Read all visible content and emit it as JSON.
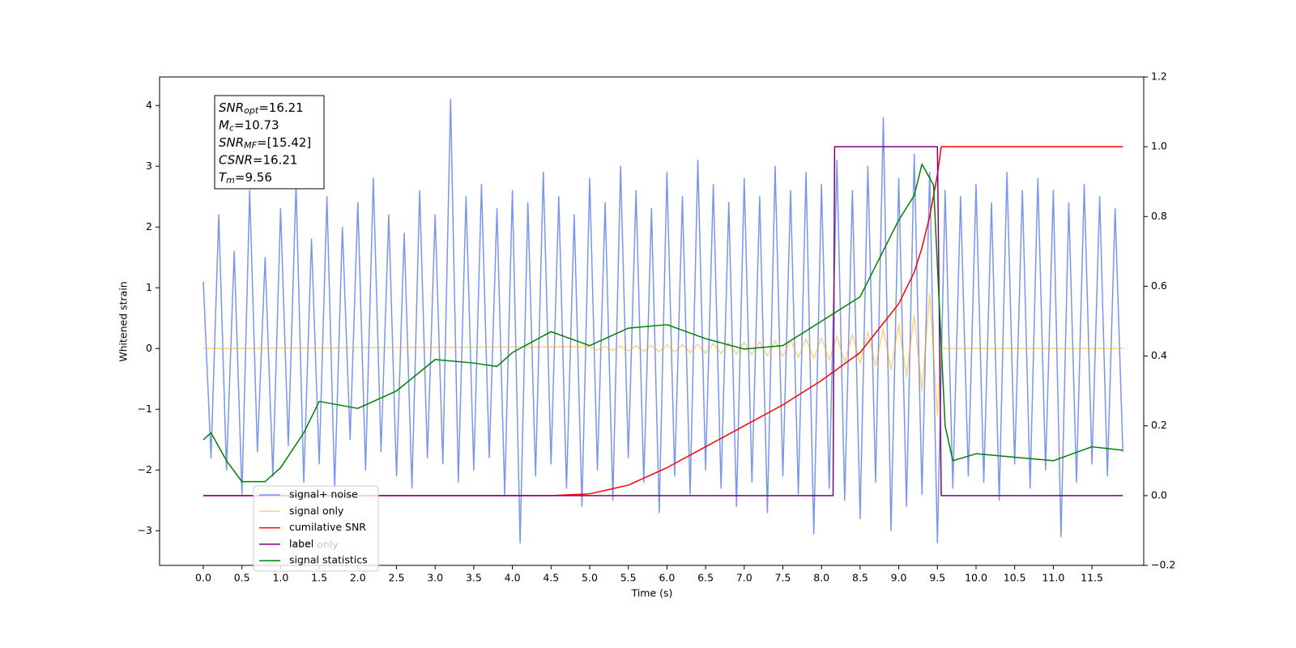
{
  "chart_data": {
    "type": "line",
    "xlabel": "Time (s)",
    "ylabel": "Whitened strain",
    "xlim": [
      -0.566,
      12.17
    ],
    "ylim": [
      -3.57,
      4.47
    ],
    "y2lim": [
      -0.2,
      1.2
    ],
    "xticks": [
      {
        "value": 0,
        "label": "0.0"
      },
      0.5,
      {
        "value": 1,
        "label": "1.0"
      },
      1.5,
      {
        "value": 2,
        "label": "2.0"
      },
      2.5,
      {
        "value": 3,
        "label": "3.0"
      },
      3.5,
      {
        "value": 4,
        "label": "4.0"
      },
      4.5,
      {
        "value": 5,
        "label": "5.0"
      },
      5.5,
      {
        "value": 6,
        "label": "6.0"
      },
      6.5,
      {
        "value": 7,
        "label": "7.0"
      },
      7.5,
      {
        "value": 8,
        "label": "8.0"
      },
      8.5,
      {
        "value": 9,
        "label": "9.0"
      },
      9.5,
      {
        "value": 10,
        "label": "10.0"
      },
      10.5,
      {
        "value": 11,
        "label": "11.0"
      },
      11.5
    ],
    "yticks": [
      {
        "value": -3,
        "label": "−3"
      },
      {
        "value": -2,
        "label": "−2"
      },
      {
        "value": -1,
        "label": "−1"
      },
      0,
      1,
      2,
      3,
      4
    ],
    "y2ticks": [
      {
        "value": -0.2,
        "label": "−0.2"
      },
      {
        "value": 0,
        "label": "0.0"
      },
      0.2,
      0.4,
      0.6,
      0.8,
      {
        "value": 1,
        "label": "1.0"
      },
      1.2
    ],
    "annotation": [
      {
        "base": "SNR",
        "sub": "opt",
        "rest": "=16.21"
      },
      {
        "base": "M",
        "sub": "c",
        "rest": "=10.73"
      },
      {
        "base": "SNR",
        "sub": "MF",
        "rest": "=[15.42]"
      },
      {
        "base": "CSNR",
        "rest": "=16.21"
      },
      {
        "base": "T",
        "sub": "m",
        "rest": "=9.56"
      }
    ],
    "legend_hidden_entry": "label only",
    "series": [
      {
        "name": "signal+ noise",
        "color": "royalblue",
        "alpha": 0.7,
        "x": [
          0,
          0.1,
          0.2,
          0.3,
          0.4,
          0.5,
          0.6,
          0.7,
          0.8,
          0.9,
          1,
          1.1,
          1.2,
          1.3,
          1.4,
          1.5,
          1.6,
          1.7,
          1.8,
          1.9,
          2,
          2.1,
          2.2,
          2.3,
          2.4,
          2.5,
          2.6,
          2.7,
          2.8,
          2.9,
          3,
          3.1,
          3.2,
          3.3,
          3.4,
          3.5,
          3.6,
          3.7,
          3.8,
          3.9,
          4,
          4.1,
          4.2,
          4.3,
          4.4,
          4.5,
          4.6,
          4.7,
          4.8,
          4.9,
          5,
          5.1,
          5.2,
          5.3,
          5.4,
          5.5,
          5.6,
          5.7,
          5.8,
          5.9,
          6,
          6.1,
          6.2,
          6.3,
          6.4,
          6.5,
          6.6,
          6.7,
          6.8,
          6.9,
          7,
          7.1,
          7.2,
          7.3,
          7.4,
          7.5,
          7.6,
          7.7,
          7.8,
          7.9,
          8,
          8.1,
          8.2,
          8.3,
          8.4,
          8.5,
          8.6,
          8.7,
          8.8,
          8.9,
          9,
          9.1,
          9.2,
          9.3,
          9.4,
          9.5,
          9.6,
          9.7,
          9.8,
          9.9,
          10,
          10.1,
          10.2,
          10.3,
          10.4,
          10.5,
          10.6,
          10.7,
          10.8,
          10.9,
          11,
          11.1,
          11.2,
          11.3,
          11.4,
          11.5,
          11.6,
          11.7,
          11.8,
          11.9
        ],
        "values": [
          1.1,
          -1.8,
          2.2,
          -2.0,
          1.6,
          -2.4,
          2.6,
          -1.7,
          1.5,
          -2.1,
          2.3,
          -1.6,
          2.7,
          -2.2,
          1.8,
          -1.9,
          2.5,
          -2.3,
          2.0,
          -1.5,
          2.4,
          -2.0,
          2.8,
          -1.7,
          2.2,
          -2.1,
          1.9,
          -2.3,
          2.6,
          -1.8,
          2.2,
          -1.9,
          4.1,
          -2.2,
          2.5,
          -2.0,
          2.7,
          -1.8,
          2.3,
          -2.4,
          2.6,
          -3.2,
          2.4,
          -2.1,
          2.9,
          -1.9,
          2.5,
          -2.3,
          2.2,
          -2.6,
          2.8,
          -2.0,
          2.4,
          -2.5,
          3.0,
          -1.8,
          2.6,
          -2.2,
          2.3,
          -2.7,
          2.9,
          -2.1,
          2.5,
          -2.4,
          3.1,
          -2.0,
          2.7,
          -2.3,
          2.4,
          -2.6,
          2.8,
          -2.2,
          2.5,
          -2.7,
          3.0,
          -2.1,
          2.6,
          -2.4,
          2.9,
          -3.05,
          2.7,
          -2.3,
          3.1,
          -2.5,
          2.6,
          -2.8,
          3.0,
          -2.2,
          3.8,
          -3.0,
          2.8,
          -2.6,
          3.2,
          -2.4,
          2.9,
          -3.2,
          2.6,
          -2.3,
          2.5,
          -2.1,
          2.7,
          -2.2,
          2.4,
          -2.5,
          2.9,
          -1.9,
          2.6,
          -2.3,
          2.8,
          -2.0,
          2.6,
          -3.1,
          2.4,
          -2.2,
          2.7,
          -1.9,
          2.5,
          -2.1,
          2.3,
          -1.7
        ]
      },
      {
        "name": "signal only",
        "color": "orange",
        "alpha": 0.5,
        "x": [
          0,
          5,
          5.1,
          5.2,
          5.3,
          5.4,
          5.5,
          5.6,
          5.7,
          5.8,
          5.9,
          6,
          6.1,
          6.2,
          6.3,
          6.4,
          6.5,
          6.6,
          6.7,
          6.8,
          6.9,
          7,
          7.1,
          7.2,
          7.3,
          7.4,
          7.5,
          7.6,
          7.7,
          7.8,
          7.9,
          8,
          8.1,
          8.2,
          8.3,
          8.4,
          8.5,
          8.6,
          8.7,
          8.8,
          8.9,
          9,
          9.1,
          9.2,
          9.3,
          9.4,
          9.5,
          9.55,
          11.9
        ],
        "values": [
          0,
          0.03,
          -0.03,
          0.035,
          -0.035,
          0.04,
          -0.04,
          0.045,
          -0.045,
          0.05,
          -0.055,
          0.06,
          -0.06,
          0.065,
          -0.07,
          0.075,
          -0.08,
          0.08,
          -0.085,
          0.09,
          -0.095,
          0.1,
          -0.105,
          0.11,
          -0.12,
          0.125,
          -0.13,
          0.14,
          -0.15,
          0.16,
          -0.17,
          0.18,
          -0.19,
          0.2,
          -0.22,
          0.23,
          -0.25,
          0.27,
          -0.29,
          0.32,
          -0.35,
          0.4,
          -0.46,
          0.55,
          -0.7,
          0.9,
          -1.1,
          0,
          0
        ]
      },
      {
        "name": "cumilative SNR",
        "color": "red",
        "axis": "y2",
        "x": [
          0,
          4.5,
          5,
          5.5,
          6,
          6.5,
          7,
          7.5,
          8,
          8.5,
          9,
          9.2,
          9.3,
          9.4,
          9.5,
          9.55,
          11.9
        ],
        "values": [
          0,
          0,
          0.005,
          0.03,
          0.08,
          0.14,
          0.2,
          0.26,
          0.33,
          0.41,
          0.55,
          0.64,
          0.71,
          0.8,
          0.92,
          1.0,
          1.0
        ]
      },
      {
        "name": "label",
        "color": "purple",
        "axis": "y2",
        "x": [
          0,
          8.15,
          8.17,
          9.5,
          9.55,
          11.9
        ],
        "values": [
          0,
          0,
          1,
          1,
          0,
          0
        ]
      },
      {
        "name": "signal statistics",
        "color": "green",
        "axis": "y2",
        "x": [
          0,
          0.1,
          0.3,
          0.5,
          0.8,
          1,
          1.3,
          1.5,
          2,
          2.5,
          3,
          3.5,
          3.8,
          4,
          4.5,
          5,
          5.5,
          6,
          6.5,
          7,
          7.5,
          8,
          8.5,
          9,
          9.2,
          9.3,
          9.45,
          9.6,
          9.7,
          10,
          10.5,
          11,
          11.5,
          11.9
        ],
        "values": [
          0.16,
          0.18,
          0.1,
          0.04,
          0.04,
          0.08,
          0.18,
          0.27,
          0.25,
          0.3,
          0.39,
          0.38,
          0.37,
          0.41,
          0.47,
          0.43,
          0.48,
          0.49,
          0.45,
          0.42,
          0.43,
          0.5,
          0.57,
          0.79,
          0.86,
          0.95,
          0.89,
          0.2,
          0.1,
          0.12,
          0.11,
          0.1,
          0.14,
          0.13
        ]
      }
    ]
  }
}
